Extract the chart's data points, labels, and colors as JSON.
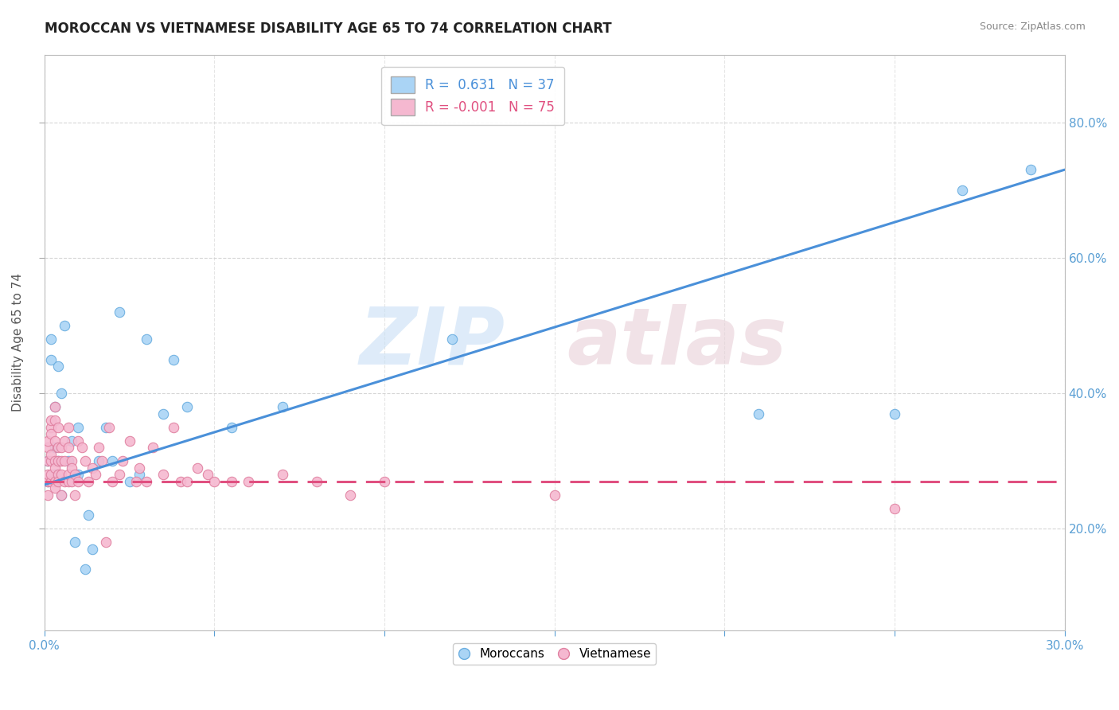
{
  "title": "MOROCCAN VS VIETNAMESE DISABILITY AGE 65 TO 74 CORRELATION CHART",
  "source": "Source: ZipAtlas.com",
  "ylabel": "Disability Age 65 to 74",
  "x_range": [
    0.0,
    0.3
  ],
  "y_range": [
    0.05,
    0.9
  ],
  "moroccan_color": "#aad4f5",
  "moroccan_edge": "#6aaee0",
  "vietnamese_color": "#f5b8d0",
  "vietnamese_edge": "#e080a0",
  "moroccan_line_color": "#4a90d9",
  "vietnamese_line_color": "#e05080",
  "moroccan_R": 0.631,
  "moroccan_N": 37,
  "vietnamese_R": -0.001,
  "vietnamese_N": 75,
  "legend_label1": "Moroccans",
  "legend_label2": "Vietnamese",
  "moroccan_x": [
    0.001,
    0.001,
    0.002,
    0.002,
    0.003,
    0.003,
    0.003,
    0.004,
    0.004,
    0.005,
    0.005,
    0.006,
    0.007,
    0.008,
    0.009,
    0.01,
    0.01,
    0.012,
    0.013,
    0.014,
    0.016,
    0.018,
    0.02,
    0.022,
    0.025,
    0.028,
    0.03,
    0.035,
    0.038,
    0.042,
    0.055,
    0.07,
    0.12,
    0.21,
    0.25,
    0.27,
    0.29
  ],
  "moroccan_y": [
    0.27,
    0.3,
    0.45,
    0.48,
    0.28,
    0.32,
    0.38,
    0.3,
    0.44,
    0.25,
    0.4,
    0.5,
    0.3,
    0.33,
    0.18,
    0.28,
    0.35,
    0.14,
    0.22,
    0.17,
    0.3,
    0.35,
    0.3,
    0.52,
    0.27,
    0.28,
    0.48,
    0.37,
    0.45,
    0.38,
    0.35,
    0.38,
    0.48,
    0.37,
    0.37,
    0.7,
    0.73
  ],
  "vietnamese_x": [
    0.001,
    0.001,
    0.001,
    0.001,
    0.001,
    0.001,
    0.002,
    0.002,
    0.002,
    0.002,
    0.002,
    0.002,
    0.002,
    0.003,
    0.003,
    0.003,
    0.003,
    0.003,
    0.003,
    0.003,
    0.004,
    0.004,
    0.004,
    0.004,
    0.004,
    0.005,
    0.005,
    0.005,
    0.005,
    0.006,
    0.006,
    0.006,
    0.007,
    0.007,
    0.007,
    0.007,
    0.008,
    0.008,
    0.008,
    0.009,
    0.009,
    0.01,
    0.01,
    0.011,
    0.012,
    0.013,
    0.014,
    0.015,
    0.016,
    0.017,
    0.018,
    0.019,
    0.02,
    0.022,
    0.023,
    0.025,
    0.027,
    0.028,
    0.03,
    0.032,
    0.035,
    0.038,
    0.04,
    0.042,
    0.045,
    0.048,
    0.05,
    0.055,
    0.06,
    0.07,
    0.08,
    0.09,
    0.1,
    0.15,
    0.25
  ],
  "vietnamese_y": [
    0.27,
    0.3,
    0.32,
    0.28,
    0.25,
    0.33,
    0.35,
    0.27,
    0.3,
    0.28,
    0.36,
    0.31,
    0.34,
    0.27,
    0.3,
    0.29,
    0.33,
    0.26,
    0.38,
    0.36,
    0.28,
    0.32,
    0.27,
    0.3,
    0.35,
    0.28,
    0.25,
    0.32,
    0.3,
    0.27,
    0.33,
    0.3,
    0.27,
    0.35,
    0.28,
    0.32,
    0.27,
    0.3,
    0.29,
    0.25,
    0.28,
    0.27,
    0.33,
    0.32,
    0.3,
    0.27,
    0.29,
    0.28,
    0.32,
    0.3,
    0.18,
    0.35,
    0.27,
    0.28,
    0.3,
    0.33,
    0.27,
    0.29,
    0.27,
    0.32,
    0.28,
    0.35,
    0.27,
    0.27,
    0.29,
    0.28,
    0.27,
    0.27,
    0.27,
    0.28,
    0.27,
    0.25,
    0.27,
    0.25,
    0.23
  ],
  "blue_line_x0": 0.0,
  "blue_line_y0": 0.265,
  "blue_line_x1": 0.3,
  "blue_line_y1": 0.73,
  "pink_line_x0": 0.0,
  "pink_line_y0": 0.27,
  "pink_line_x1": 0.3,
  "pink_line_y1": 0.27
}
